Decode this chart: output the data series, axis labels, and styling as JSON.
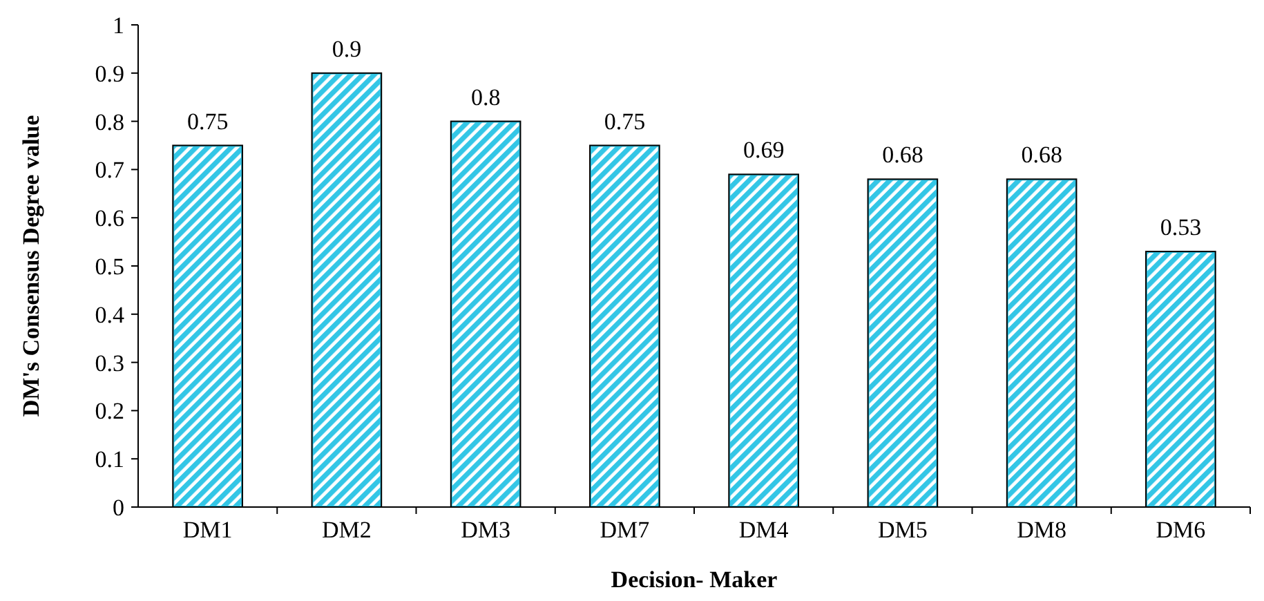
{
  "chart_data": {
    "type": "bar",
    "xlabel": "Decision- Maker",
    "ylabel": "DM's Consensus Degree value",
    "categories": [
      "DM1",
      "DM2",
      "DM3",
      "DM7",
      "DM4",
      "DM5",
      "DM8",
      "DM6"
    ],
    "values": [
      0.75,
      0.9,
      0.8,
      0.75,
      0.69,
      0.68,
      0.68,
      0.53
    ],
    "color": "#33c6e6",
    "ylim": [
      0,
      1
    ],
    "yticks": [
      0,
      0.1,
      0.2,
      0.3,
      0.4,
      0.5,
      0.6,
      0.7,
      0.8,
      0.9,
      1
    ],
    "data_labels": true,
    "grid": false
  }
}
